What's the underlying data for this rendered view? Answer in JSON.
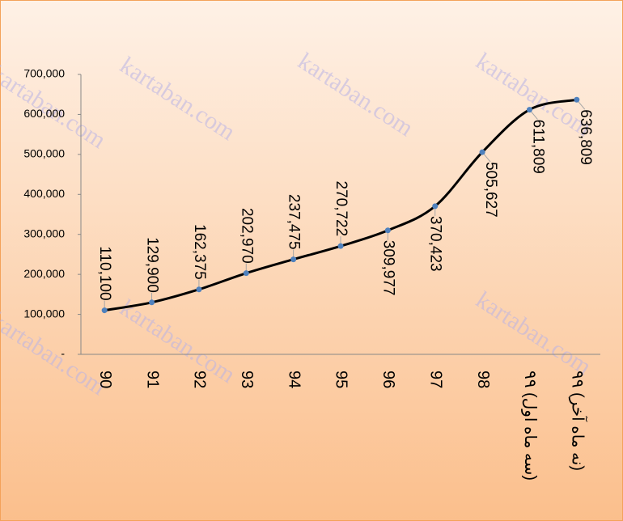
{
  "chart_data": {
    "type": "line",
    "categories": [
      "90",
      "91",
      "92",
      "93",
      "94",
      "95",
      "96",
      "97",
      "98",
      "۹۹ (سه ماه اول)",
      "۹۹ (نه ماه آخر)"
    ],
    "series": [
      {
        "color": "#000000",
        "values": [
          110100,
          129900,
          162375,
          202970,
          237475,
          270722,
          309977,
          370423,
          505627,
          611809,
          636809
        ],
        "value_labels": [
          "110,100",
          "129,900",
          "162,375",
          "202,970",
          "237,475",
          "270,722",
          "309,977",
          "370,423",
          "505,627",
          "611,809",
          "636,809"
        ]
      }
    ],
    "ylim": [
      0,
      700000
    ],
    "yticks": [
      {
        "value": 0,
        "label": "-"
      },
      {
        "value": 100000,
        "label": "100,000"
      },
      {
        "value": 200000,
        "label": "200,000"
      },
      {
        "value": 300000,
        "label": "300,000"
      },
      {
        "value": 400000,
        "label": "400,000"
      },
      {
        "value": 500000,
        "label": "500,000"
      },
      {
        "value": 600000,
        "label": "600,000"
      },
      {
        "value": 700000,
        "label": "700,000"
      }
    ],
    "marker_color": "#4f81bd",
    "smooth": true,
    "watermark": "kartaban.com"
  }
}
